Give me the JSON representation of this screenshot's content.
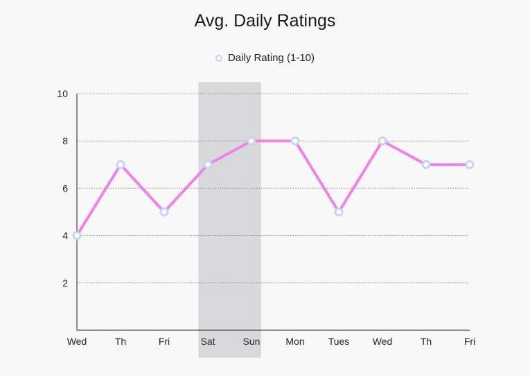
{
  "chart_data": {
    "type": "line",
    "title": "Avg. Daily Ratings",
    "xlabel": "",
    "ylabel": "",
    "categories": [
      "Wed",
      "Th",
      "Fri",
      "Sat",
      "Sun",
      "Mon",
      "Tues",
      "Wed",
      "Th",
      "Fri"
    ],
    "series": [
      {
        "name": "Daily Rating (1-10)",
        "values": [
          4,
          7,
          5,
          7,
          8,
          8,
          5,
          8,
          7,
          7
        ],
        "color": "#ee82e8",
        "marker_color": "#c7d3f4"
      }
    ],
    "ylim": [
      0,
      10
    ],
    "yticks": [
      2,
      4,
      6,
      8,
      10
    ],
    "grid": "horizontal-dotted",
    "legend": "top-center",
    "highlight": {
      "from_category_index": 3,
      "to_category_index": 4,
      "color": "#d9d9db"
    }
  }
}
